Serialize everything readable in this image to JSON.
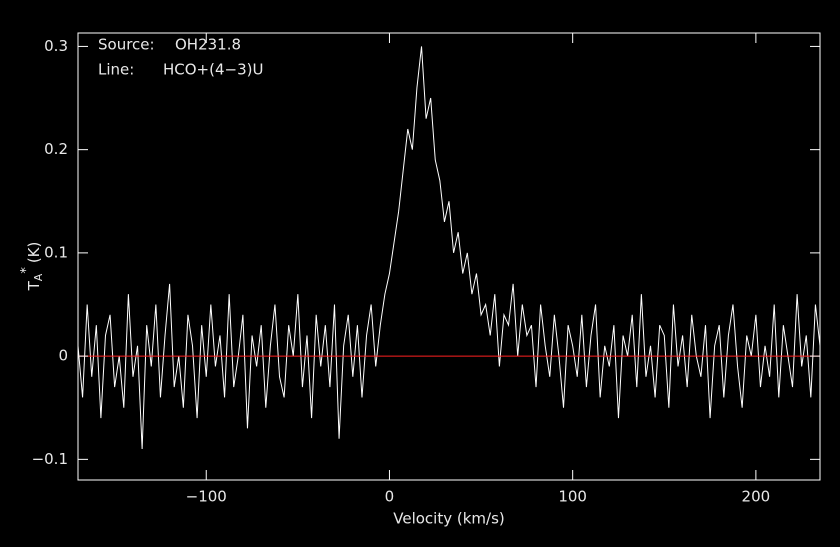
{
  "chart_data": {
    "type": "line",
    "x_label": "Velocity (km/s)",
    "y_label": {
      "main": "T",
      "sub": "A",
      "sup": "*",
      "unit": "(K)"
    },
    "annotations": [
      {
        "key": "Source:",
        "text": "OH231.8"
      },
      {
        "key": "Line:",
        "text": "HCO+(4−3)U"
      }
    ],
    "xlim": [
      -170,
      235
    ],
    "ylim": [
      -0.12,
      0.313
    ],
    "xticks": [
      {
        "value": -100,
        "label": "−100"
      },
      0,
      100,
      200
    ],
    "yticks": [
      {
        "value": -0.1,
        "label": "−0.1"
      },
      0,
      0.1,
      0.2,
      0.3
    ],
    "baseline": 0,
    "baseline_color": "#ff2020",
    "x": [
      -170,
      -167.5,
      -165,
      -162.5,
      -160,
      -157.5,
      -155,
      -152.5,
      -150,
      -147.5,
      -145,
      -142.5,
      -140,
      -137.5,
      -135,
      -132.5,
      -130,
      -127.5,
      -125,
      -122.5,
      -120,
      -117.5,
      -115,
      -112.5,
      -110,
      -107.5,
      -105,
      -102.5,
      -100,
      -97.5,
      -95,
      -92.5,
      -90,
      -87.5,
      -85,
      -82.5,
      -80,
      -77.5,
      -75,
      -72.5,
      -70,
      -67.5,
      -65,
      -62.5,
      -60,
      -57.5,
      -55,
      -52.5,
      -50,
      -47.5,
      -45,
      -42.5,
      -40,
      -37.5,
      -35,
      -32.5,
      -30,
      -27.5,
      -25,
      -22.5,
      -20,
      -17.5,
      -15,
      -12.5,
      -10,
      -7.5,
      -5,
      -2.5,
      0,
      2.5,
      5,
      7.5,
      10,
      12.5,
      15,
      17.5,
      20,
      22.5,
      25,
      27.5,
      30,
      32.5,
      35,
      37.5,
      40,
      42.5,
      45,
      47.5,
      50,
      52.5,
      55,
      57.5,
      60,
      62.5,
      65,
      67.5,
      70,
      72.5,
      75,
      77.5,
      80,
      82.5,
      85,
      87.5,
      90,
      92.5,
      95,
      97.5,
      100,
      102.5,
      105,
      107.5,
      110,
      112.5,
      115,
      117.5,
      120,
      122.5,
      125,
      127.5,
      130,
      132.5,
      135,
      137.5,
      140,
      142.5,
      145,
      147.5,
      150,
      152.5,
      155,
      157.5,
      160,
      162.5,
      165,
      167.5,
      170,
      172.5,
      175,
      177.5,
      180,
      182.5,
      185,
      187.5,
      190,
      192.5,
      195,
      197.5,
      200,
      202.5,
      205,
      207.5,
      210,
      212.5,
      215,
      217.5,
      220,
      222.5,
      225,
      227.5,
      230,
      232.5,
      235
    ],
    "series": [
      {
        "color": "#ffffff",
        "values": [
          0.01,
          -0.04,
          0.05,
          -0.02,
          0.03,
          -0.06,
          0.02,
          0.04,
          -0.03,
          0.0,
          -0.05,
          0.06,
          -0.02,
          0.01,
          -0.09,
          0.03,
          -0.01,
          0.05,
          -0.04,
          0.02,
          0.07,
          -0.03,
          0.0,
          -0.05,
          0.04,
          0.01,
          -0.06,
          0.03,
          -0.02,
          0.05,
          -0.01,
          0.02,
          -0.04,
          0.06,
          -0.03,
          0.0,
          0.04,
          -0.07,
          0.02,
          -0.01,
          0.03,
          -0.05,
          0.01,
          0.05,
          -0.02,
          -0.04,
          0.03,
          0.0,
          0.06,
          -0.03,
          0.02,
          -0.06,
          0.04,
          -0.01,
          0.03,
          -0.03,
          0.05,
          -0.08,
          0.01,
          0.04,
          -0.02,
          0.03,
          -0.04,
          0.02,
          0.05,
          -0.01,
          0.03,
          0.06,
          0.08,
          0.11,
          0.14,
          0.18,
          0.22,
          0.2,
          0.26,
          0.3,
          0.23,
          0.25,
          0.19,
          0.17,
          0.13,
          0.15,
          0.1,
          0.12,
          0.08,
          0.1,
          0.06,
          0.08,
          0.04,
          0.05,
          0.02,
          0.06,
          -0.01,
          0.04,
          0.03,
          0.07,
          0.0,
          0.05,
          0.02,
          0.03,
          -0.03,
          0.05,
          0.01,
          -0.02,
          0.04,
          0.0,
          -0.05,
          0.03,
          0.01,
          -0.02,
          0.04,
          -0.03,
          0.02,
          0.05,
          -0.04,
          0.01,
          -0.01,
          0.03,
          -0.06,
          0.02,
          0.0,
          0.04,
          -0.03,
          0.06,
          -0.02,
          0.01,
          -0.04,
          0.03,
          0.02,
          -0.05,
          0.05,
          -0.01,
          0.02,
          -0.03,
          0.04,
          0.0,
          -0.02,
          0.03,
          -0.06,
          0.01,
          0.03,
          -0.04,
          0.02,
          0.05,
          -0.01,
          -0.05,
          0.02,
          0.0,
          0.04,
          -0.03,
          0.01,
          -0.02,
          0.05,
          -0.04,
          0.03,
          0.0,
          -0.03,
          0.06,
          -0.01,
          0.02,
          -0.04,
          0.05,
          0.01
        ]
      }
    ]
  }
}
